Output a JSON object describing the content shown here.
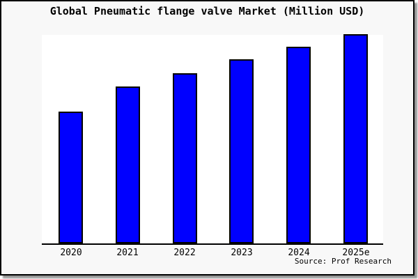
{
  "title": "Global Pneumatic flange valve Market (Million USD)",
  "source": "Source: Prof Research",
  "chart_data": {
    "type": "bar",
    "title": "Global Pneumatic flange valve Market (Million USD)",
    "categories": [
      "2020",
      "2021",
      "2022",
      "2023",
      "2024",
      "2025e"
    ],
    "values": [
      63,
      75,
      81.5,
      88,
      94,
      100
    ],
    "values_note": "y-axis has no tick labels; values estimated as percent of tallest bar (2025e = 100)",
    "xlabel": "",
    "ylabel": "",
    "ylim": [
      0,
      100
    ],
    "grid": false,
    "legend": "none",
    "annotation": "Source: Prof Research",
    "colors": {
      "bar_fill": "#0000ff",
      "bar_edge": "#000000",
      "plot_bg": "#ffffff",
      "page_bg": "#f8f8f8",
      "frame_border": "#000000",
      "text": "#000000"
    }
  }
}
